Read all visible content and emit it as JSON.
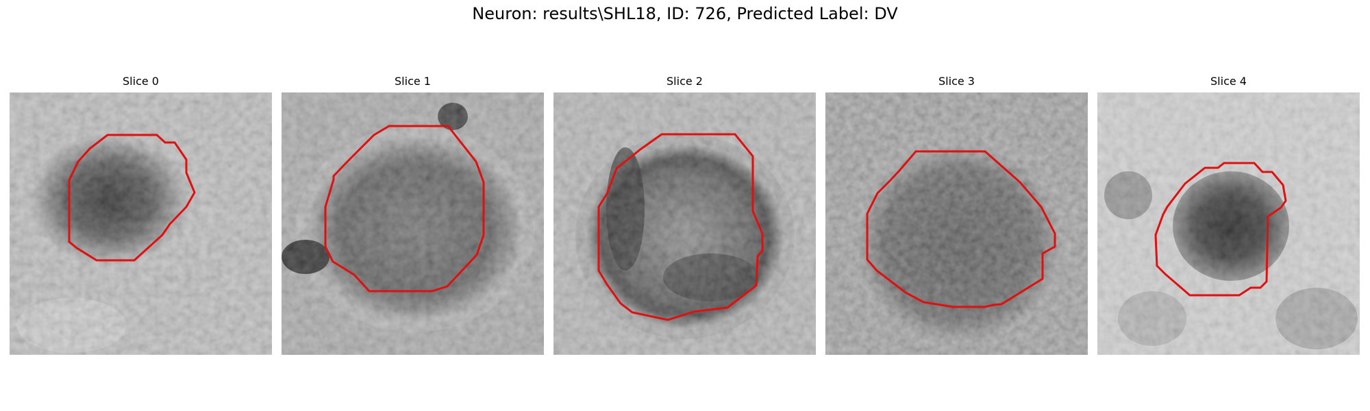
{
  "figure": {
    "title": "Neuron: results\\SHL18, ID: 726, Predicted Label: DV"
  },
  "colors": {
    "contour": "#e01010",
    "background": "#ffffff"
  },
  "panels": [
    {
      "title": "Slice 0"
    },
    {
      "title": "Slice 1"
    },
    {
      "title": "Slice 2"
    },
    {
      "title": "Slice 3"
    },
    {
      "title": "Slice 4"
    }
  ]
}
